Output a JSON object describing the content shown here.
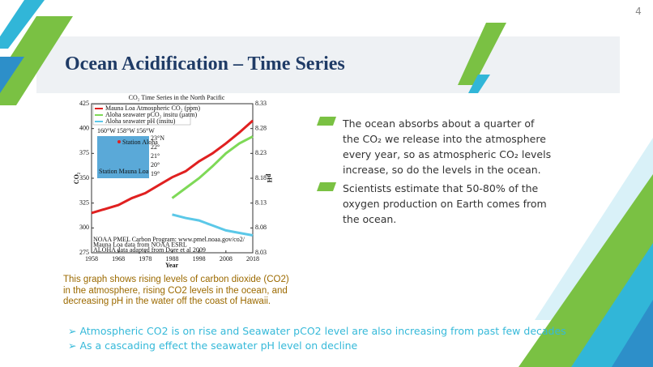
{
  "page_number": "4",
  "title": "Ocean Acidification – Time Series",
  "chart": {
    "type": "line",
    "title": "CO₂ Time Series in the North Pacific",
    "y_label": "CO₂",
    "y2_label": "pH",
    "x_label": "Year",
    "x": [
      1958,
      1963,
      1968,
      1973,
      1978,
      1983,
      1988,
      1993,
      1998,
      2003,
      2008,
      2013,
      2018
    ],
    "xlim": [
      1958,
      2018
    ],
    "xticks": [
      1958,
      1968,
      1978,
      1988,
      1998,
      2008,
      2018
    ],
    "ylim": [
      275,
      425
    ],
    "yticks": [
      275,
      300,
      325,
      350,
      375,
      400,
      425
    ],
    "y2lim": [
      8.03,
      8.33
    ],
    "y2ticks": [
      8.03,
      8.08,
      8.13,
      8.18,
      8.23,
      8.28,
      8.33
    ],
    "series": [
      {
        "name": "Mauna Loa Atmospheric CO₂ (ppm)",
        "color": "#e02020",
        "values": [
          315,
          319,
          323,
          330,
          335,
          343,
          351,
          357,
          367,
          375,
          385,
          396,
          408
        ]
      },
      {
        "name": "Aloha seawater pCO₂ insitu (µatm)",
        "color": "#7ed957",
        "values": [
          null,
          null,
          null,
          null,
          null,
          null,
          330,
          340,
          350,
          362,
          375,
          385,
          392
        ]
      },
      {
        "name": "Aloha seawater pH (insitu)",
        "color": "#5bc8e8",
        "axis": "y2",
        "values": [
          null,
          null,
          null,
          null,
          null,
          null,
          8.107,
          8.1,
          8.095,
          8.085,
          8.075,
          8.07,
          8.065
        ]
      }
    ],
    "inset": {
      "longitudes": [
        "160°W",
        "158°W",
        "156°W"
      ],
      "latitudes": [
        "23°N",
        "22°",
        "21°",
        "20°",
        "19°"
      ],
      "stations": [
        "Station Aloha",
        "Station Mauna Loa"
      ]
    },
    "notes": [
      "NOAA PMEL Carbon Program: www.pmel.noaa.gov/co2/",
      "Mauna Loa data from NOAA ESRL",
      "ALOHA data adapted from Dore et al 2009"
    ]
  },
  "caption": "This graph shows rising levels of carbon dioxide (CO2) in the atmosphere, rising CO2 levels in the ocean, and decreasing pH in the water off the coast of Hawaii.",
  "bullets": [
    "The ocean absorbs about a quarter of the CO₂ we release into the atmosphere every year, so as atmospheric CO₂ levels increase, so do the levels in the ocean.",
    "Scientists estimate that 50-80% of the oxygen production on Earth comes from the ocean."
  ],
  "bottom_points": [
    "Atmospheric CO2 is on rise and Seawater pCO2 level are also increasing from past few decades",
    "As a cascading effect the seawater pH level on decline"
  ]
}
